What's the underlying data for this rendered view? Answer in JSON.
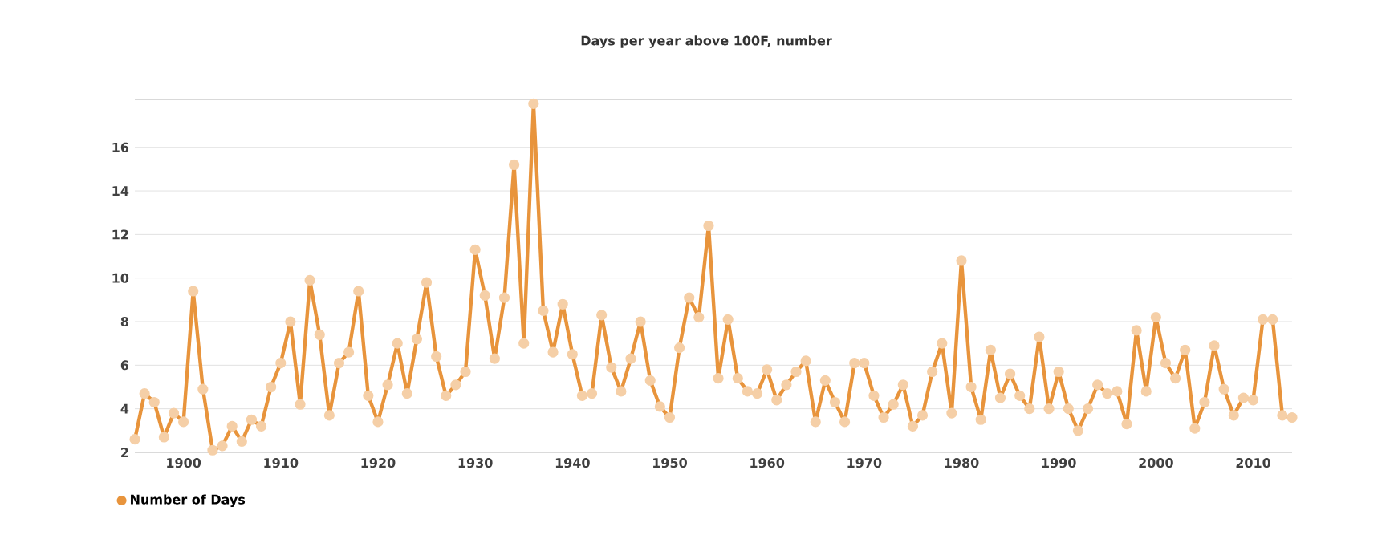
{
  "chart_data": {
    "type": "line",
    "title": "Days per year above 100F, number",
    "x": [
      1895,
      1896,
      1897,
      1898,
      1899,
      1900,
      1901,
      1902,
      1903,
      1904,
      1905,
      1906,
      1907,
      1908,
      1909,
      1910,
      1911,
      1912,
      1913,
      1914,
      1915,
      1916,
      1917,
      1918,
      1919,
      1920,
      1921,
      1922,
      1923,
      1924,
      1925,
      1926,
      1927,
      1928,
      1929,
      1930,
      1931,
      1932,
      1933,
      1934,
      1935,
      1936,
      1937,
      1938,
      1939,
      1940,
      1941,
      1942,
      1943,
      1944,
      1945,
      1946,
      1947,
      1948,
      1949,
      1950,
      1951,
      1952,
      1953,
      1954,
      1955,
      1956,
      1957,
      1958,
      1959,
      1960,
      1961,
      1962,
      1963,
      1964,
      1965,
      1966,
      1967,
      1968,
      1969,
      1970,
      1971,
      1972,
      1973,
      1974,
      1975,
      1976,
      1977,
      1978,
      1979,
      1980,
      1981,
      1982,
      1983,
      1984,
      1985,
      1986,
      1987,
      1988,
      1989,
      1990,
      1991,
      1992,
      1993,
      1994,
      1995,
      1996,
      1997,
      1998,
      1999,
      2000,
      2001,
      2002,
      2003,
      2004,
      2005,
      2006,
      2007,
      2008,
      2009,
      2010,
      2011,
      2012,
      2013,
      2014
    ],
    "series": [
      {
        "name": "Number of Days",
        "color": "#e8943c",
        "values": [
          2.6,
          4.7,
          4.3,
          2.7,
          3.8,
          3.4,
          9.4,
          4.9,
          2.1,
          2.3,
          3.2,
          2.5,
          3.5,
          3.2,
          5.0,
          6.1,
          8.0,
          4.2,
          9.9,
          7.4,
          3.7,
          6.1,
          6.6,
          9.4,
          4.6,
          3.4,
          5.1,
          7.0,
          4.7,
          7.2,
          9.8,
          6.4,
          4.6,
          5.1,
          5.7,
          11.3,
          9.2,
          6.3,
          9.1,
          15.2,
          7.0,
          18.0,
          8.5,
          6.6,
          8.8,
          6.5,
          4.6,
          4.7,
          8.3,
          5.9,
          4.8,
          6.3,
          8.0,
          5.3,
          4.1,
          3.6,
          6.8,
          9.1,
          8.2,
          12.4,
          5.4,
          8.1,
          5.4,
          4.8,
          4.7,
          5.8,
          4.4,
          5.1,
          5.7,
          6.2,
          3.4,
          5.3,
          4.3,
          3.4,
          6.1,
          6.1,
          4.6,
          3.6,
          4.2,
          5.1,
          3.2,
          3.7,
          5.7,
          7.0,
          3.8,
          10.8,
          5.0,
          3.5,
          6.7,
          4.5,
          5.6,
          4.6,
          4.0,
          7.3,
          4.0,
          5.7,
          4.0,
          3.0,
          4.0,
          5.1,
          4.7,
          4.8,
          3.3,
          7.6,
          4.8,
          8.2,
          6.1,
          5.4,
          6.7,
          3.1,
          4.3,
          6.9,
          4.9,
          3.7,
          4.5,
          4.4,
          8.1,
          8.1,
          3.7,
          3.6
        ]
      }
    ],
    "xlim": [
      1895,
      2014
    ],
    "xticks": [
      1900,
      1910,
      1920,
      1930,
      1940,
      1950,
      1960,
      1970,
      1980,
      1990,
      2000,
      2010
    ],
    "ylim": [
      2,
      18.2
    ],
    "yticks": [
      2,
      4,
      6,
      8,
      10,
      12,
      14,
      16
    ],
    "grid": "y",
    "legend": "bottom left",
    "marker": "circle",
    "line_style": "solid"
  }
}
